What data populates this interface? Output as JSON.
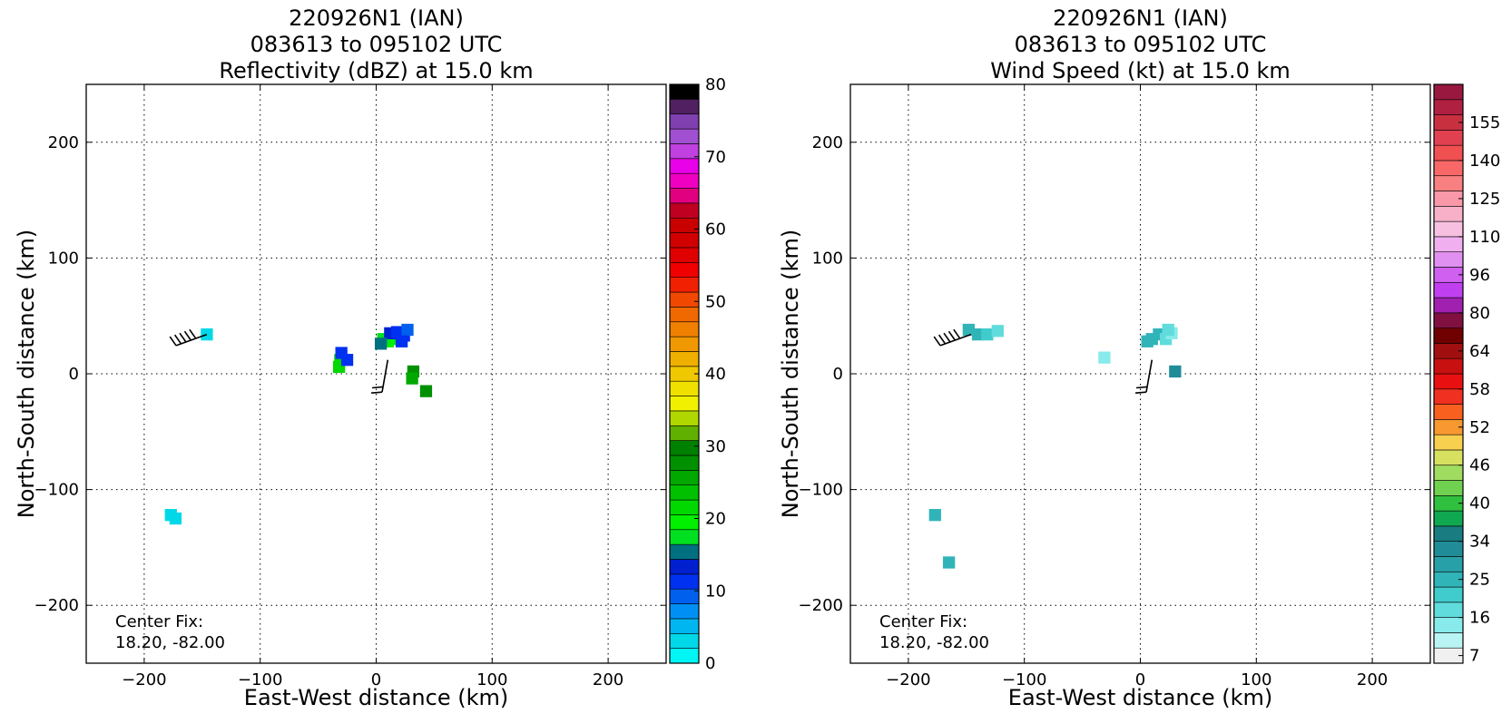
{
  "chart_data": [
    {
      "type": "heatmap",
      "title_lines": [
        "220926N1 (IAN)",
        "083613 to 095102 UTC",
        "Reflectivity (dBZ) at 15.0 km"
      ],
      "xlabel": "East-West distance (km)",
      "ylabel": "North-South distance (km)",
      "xlim": [
        -250,
        250
      ],
      "ylim": [
        -250,
        250
      ],
      "xticks": [
        -200,
        -100,
        0,
        100,
        200
      ],
      "yticks": [
        -200,
        -100,
        0,
        100,
        200
      ],
      "grid": true,
      "annotation": [
        "Center Fix:",
        "18.20, -82.00"
      ],
      "colorbar": {
        "label": "Reflectivity (dBZ)",
        "min": 0,
        "max": 80,
        "tick_labels": [
          "0",
          "10",
          "20",
          "30",
          "40",
          "50",
          "60",
          "70",
          "80"
        ],
        "colors": [
          "#00f5f5",
          "#00d8e8",
          "#00b6f0",
          "#0090f5",
          "#0060ee",
          "#0030f0",
          "#0020d0",
          "#007080",
          "#00e020",
          "#00f000",
          "#00d800",
          "#00c000",
          "#00a800",
          "#009000",
          "#008000",
          "#60b000",
          "#b0d800",
          "#f0f000",
          "#f0e000",
          "#f0c800",
          "#f0b000",
          "#f09800",
          "#f08000",
          "#f06800",
          "#f04800",
          "#f02000",
          "#f00000",
          "#e00000",
          "#d00000",
          "#c80000",
          "#c00020",
          "#e00080",
          "#f000c0",
          "#e800e8",
          "#c040e0",
          "#a050d0",
          "#8040b0",
          "#502060",
          "#000000"
        ]
      },
      "cells": [
        {
          "x": 15,
          "y": 30,
          "v": 18
        },
        {
          "x": 10,
          "y": 28,
          "v": 20
        },
        {
          "x": 6,
          "y": 30,
          "v": 18
        },
        {
          "x": 12,
          "y": 35,
          "v": 14
        },
        {
          "x": 18,
          "y": 36,
          "v": 12
        },
        {
          "x": 24,
          "y": 33,
          "v": 12
        },
        {
          "x": 27,
          "y": 38,
          "v": 10
        },
        {
          "x": 4,
          "y": 26,
          "v": 16
        },
        {
          "x": 22,
          "y": 28,
          "v": 12
        },
        {
          "x": -31,
          "y": 12,
          "v": 22
        },
        {
          "x": -30,
          "y": 18,
          "v": 12
        },
        {
          "x": -32,
          "y": 6,
          "v": 22
        },
        {
          "x": -25,
          "y": 12,
          "v": 12
        },
        {
          "x": 32,
          "y": 2,
          "v": 27
        },
        {
          "x": 31,
          "y": -4,
          "v": 25
        },
        {
          "x": 43,
          "y": -15,
          "v": 27
        },
        {
          "x": -146,
          "y": 34,
          "v": 4
        },
        {
          "x": -177,
          "y": -122,
          "v": 3
        },
        {
          "x": -173,
          "y": -125,
          "v": 3
        }
      ],
      "wind_barbs": [
        {
          "x": -146,
          "y": 34,
          "dir_deg": 250,
          "speed_kt": 45
        },
        {
          "x": 10,
          "y": 12,
          "dir_deg": 190,
          "speed_kt": 20
        }
      ]
    },
    {
      "type": "heatmap",
      "title_lines": [
        "220926N1 (IAN)",
        "083613 to 095102 UTC",
        "Wind Speed (kt) at 15.0 km"
      ],
      "xlabel": "East-West distance (km)",
      "ylabel": "North-South distance (km)",
      "xlim": [
        -250,
        250
      ],
      "ylim": [
        -250,
        250
      ],
      "xticks": [
        -200,
        -100,
        0,
        100,
        200
      ],
      "yticks": [
        -200,
        -100,
        0,
        100,
        200
      ],
      "grid": true,
      "annotation": [
        "Center Fix:",
        "18.20, -82.00"
      ],
      "colorbar": {
        "label": "Wind Speed (kt)",
        "min": 4,
        "max": 160,
        "tick_labels": [
          "7",
          "16",
          "25",
          "34",
          "40",
          "46",
          "52",
          "58",
          "64",
          "80",
          "96",
          "110",
          "125",
          "140",
          "155"
        ],
        "colors": [
          "#f0f0f0",
          "#b8f4f4",
          "#88eaea",
          "#60dcdc",
          "#40cccc",
          "#30b4b8",
          "#28a0a8",
          "#208c98",
          "#187c80",
          "#10a850",
          "#30c040",
          "#70d050",
          "#a0dc60",
          "#d8e060",
          "#f8d050",
          "#f89830",
          "#f86020",
          "#f03020",
          "#e81010",
          "#c81010",
          "#a01010",
          "#700000",
          "#801040",
          "#a020b0",
          "#c040f0",
          "#d060f0",
          "#e090f0",
          "#f0b0f0",
          "#f8c0e0",
          "#f8b0c8",
          "#f898a8",
          "#f88080",
          "#f86868",
          "#f05050",
          "#e04050",
          "#c83040",
          "#b02040",
          "#981840"
        ]
      },
      "cells": [
        {
          "x": 10,
          "y": 30,
          "v": 25
        },
        {
          "x": 16,
          "y": 34,
          "v": 25
        },
        {
          "x": 22,
          "y": 30,
          "v": 18
        },
        {
          "x": 27,
          "y": 35,
          "v": 14
        },
        {
          "x": 6,
          "y": 28,
          "v": 25
        },
        {
          "x": 24,
          "y": 38,
          "v": 20
        },
        {
          "x": -148,
          "y": 38,
          "v": 25
        },
        {
          "x": -140,
          "y": 34,
          "v": 25
        },
        {
          "x": -132,
          "y": 34,
          "v": 22
        },
        {
          "x": -123,
          "y": 37,
          "v": 20
        },
        {
          "x": -31,
          "y": 14,
          "v": 16
        },
        {
          "x": 30,
          "y": 2,
          "v": 36
        },
        {
          "x": -177,
          "y": -122,
          "v": 25
        },
        {
          "x": -165,
          "y": -163,
          "v": 25
        }
      ],
      "wind_barbs": [
        {
          "x": -146,
          "y": 34,
          "dir_deg": 250,
          "speed_kt": 45
        },
        {
          "x": 10,
          "y": 12,
          "dir_deg": 190,
          "speed_kt": 20
        }
      ]
    }
  ]
}
